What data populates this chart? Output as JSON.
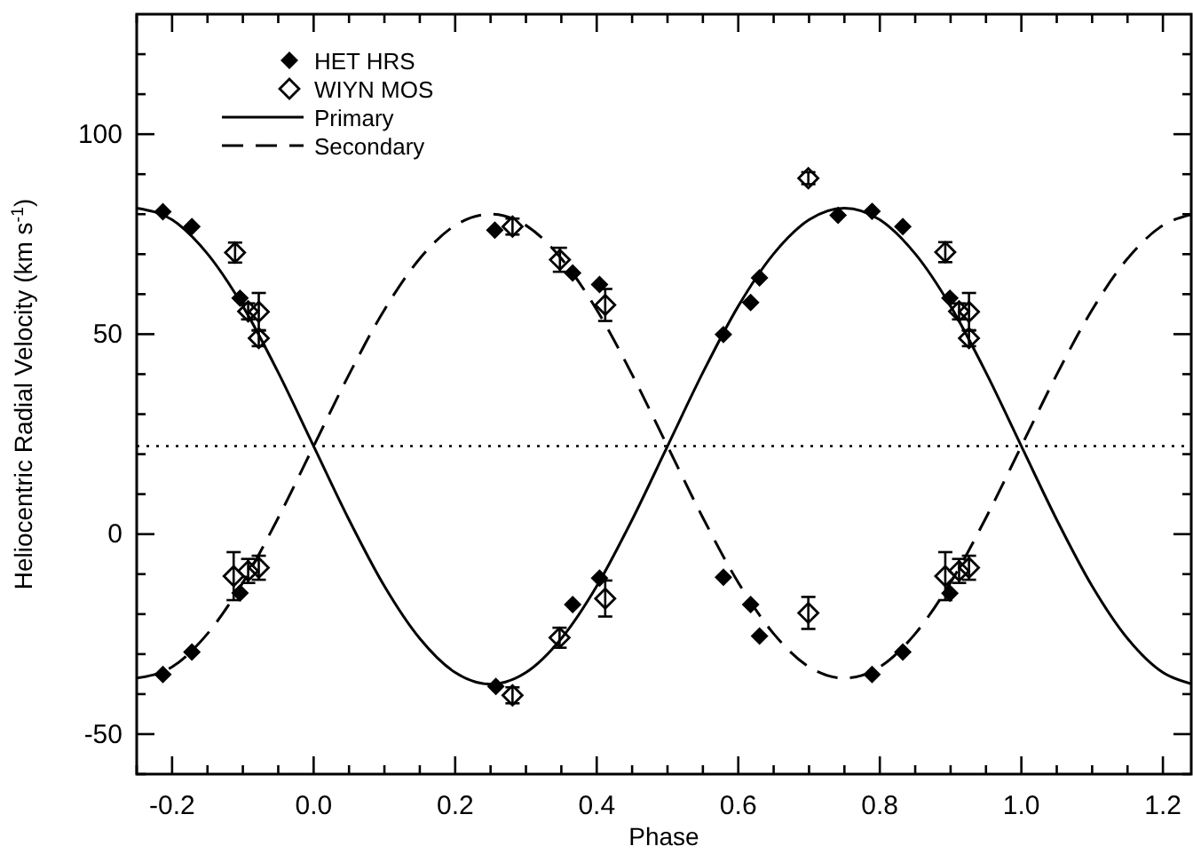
{
  "chart_data": {
    "type": "scatter",
    "xlabel": "Phase",
    "ylabel": "Heliocentric Radial Velocity (km s$^{-1}$)",
    "xlim": [
      -0.25,
      1.24
    ],
    "ylim": [
      -60,
      130
    ],
    "xticks": [
      {
        "value": -0.25,
        "label": null
      },
      -0.2,
      {
        "value": -0.15,
        "label": null
      },
      {
        "value": -0.1,
        "label": null
      },
      {
        "value": -0.05,
        "label": null
      },
      {
        "value": 0,
        "label": "0.0"
      },
      {
        "value": 0.05,
        "label": null
      },
      {
        "value": 0.1,
        "label": null
      },
      {
        "value": 0.15,
        "label": null
      },
      0.2,
      {
        "value": 0.25,
        "label": null
      },
      {
        "value": 0.3,
        "label": null
      },
      {
        "value": 0.35,
        "label": null
      },
      0.4,
      {
        "value": 0.45,
        "label": null
      },
      {
        "value": 0.5,
        "label": null
      },
      {
        "value": 0.55,
        "label": null
      },
      0.6,
      {
        "value": 0.65,
        "label": null
      },
      {
        "value": 0.7,
        "label": null
      },
      {
        "value": 0.75,
        "label": null
      },
      0.8,
      {
        "value": 0.85,
        "label": null
      },
      {
        "value": 0.9,
        "label": null
      },
      {
        "value": 0.95,
        "label": null
      },
      {
        "value": 1,
        "label": "1.0"
      },
      {
        "value": 1.05,
        "label": null
      },
      {
        "value": 1.1,
        "label": null
      },
      {
        "value": 1.15,
        "label": null
      },
      1.2
    ],
    "yticks": [
      {
        "value": -60,
        "label": null
      },
      -50,
      {
        "value": -40,
        "label": null
      },
      {
        "value": -30,
        "label": null
      },
      {
        "value": -20,
        "label": null
      },
      {
        "value": -10,
        "label": null
      },
      0,
      {
        "value": 10,
        "label": null
      },
      {
        "value": 20,
        "label": null
      },
      {
        "value": 30,
        "label": null
      },
      {
        "value": 40,
        "label": null
      },
      50,
      {
        "value": 60,
        "label": null
      },
      {
        "value": 70,
        "label": null
      },
      {
        "value": 80,
        "label": null
      },
      {
        "value": 90,
        "label": null
      },
      100,
      {
        "value": 110,
        "label": null
      },
      {
        "value": 120,
        "label": null
      }
    ],
    "grid": false,
    "legend": "top left",
    "ref_lines": [
      {
        "axis": "y",
        "value": 22,
        "line_style": "dotted",
        "color": "#000000"
      }
    ],
    "series": [
      {
        "name": "HET HRS",
        "marker": "diamond",
        "color": "#000000",
        "x": [
          -0.213,
          -0.172,
          -0.104,
          -0.213,
          -0.172,
          -0.104,
          0.256,
          0.366,
          0.404,
          0.2575,
          0.366,
          0.404,
          0.579,
          0.6175,
          0.63,
          0.741,
          0.789,
          0.8325,
          0.899,
          0.579,
          0.6175,
          0.63,
          0.789,
          0.8325,
          0.899
        ],
        "values": [
          80.6,
          76.9,
          59.0,
          -35.1,
          -29.5,
          -14.7,
          76.0,
          65.3,
          62.4,
          -38.1,
          -17.6,
          -11.0,
          49.9,
          57.9,
          64.1,
          79.7,
          80.7,
          76.9,
          59.0,
          -10.8,
          -17.6,
          -25.5,
          -35.1,
          -29.5,
          -14.8
        ]
      },
      {
        "name": "WIYN MOS",
        "marker": "diamond",
        "color": "#000000",
        "x": [
          -0.111,
          -0.0925,
          -0.0775,
          -0.0775,
          -0.113,
          -0.0925,
          -0.0775,
          0.281,
          0.348,
          0.412,
          0.281,
          0.3475,
          0.412,
          0.699,
          0.8925,
          0.912,
          0.926,
          0.926,
          0.699,
          0.8925,
          0.912,
          0.926
        ],
        "values": [
          70.4,
          55.7,
          55.6,
          49.0,
          -10.5,
          -9.2,
          -8.4,
          76.9,
          68.6,
          57.3,
          -40.3,
          -25.9,
          -16.1,
          89.0,
          70.5,
          55.7,
          55.6,
          49.0,
          -19.7,
          -10.5,
          -9.2,
          -8.4
        ],
        "errors": [
          2.5,
          2,
          4.7,
          2,
          6,
          3,
          3,
          2,
          3,
          4,
          2,
          2.5,
          4.5,
          1.5,
          2.5,
          2,
          4.7,
          2,
          4,
          6,
          3,
          3
        ]
      },
      {
        "name": "Primary",
        "type": "line",
        "marker": "none",
        "line_style": "solid",
        "color": "#000000",
        "x": [
          -0.25,
          -0.2,
          -0.15,
          -0.1,
          -0.05,
          0,
          0.05,
          0.1,
          0.15,
          0.2,
          0.25,
          0.3,
          0.35,
          0.4,
          0.45,
          0.5,
          0.55,
          0.6,
          0.65,
          0.7,
          0.75,
          0.8,
          0.85,
          0.9,
          0.95,
          1,
          1.05,
          1.1,
          1.15,
          1.2,
          1.24
        ],
        "values": [
          81.5,
          78.6,
          70.1,
          57.0,
          40.4,
          22,
          3.6,
          -13.0,
          -26.1,
          -34.6,
          -37.5,
          -34.6,
          -26.1,
          -13.0,
          3.6,
          22,
          40.4,
          57.0,
          70.1,
          78.6,
          81.5,
          78.6,
          70.1,
          57.0,
          40.4,
          22,
          3.6,
          -13.0,
          -26.1,
          -34.6,
          -37.4
        ]
      },
      {
        "name": "Secondary",
        "type": "line",
        "marker": "none",
        "line_style": "dashed",
        "color": "#000000",
        "x": [
          -0.25,
          -0.2,
          -0.15,
          -0.1,
          -0.05,
          0,
          0.05,
          0.1,
          0.15,
          0.2,
          0.25,
          0.3,
          0.35,
          0.4,
          0.45,
          0.5,
          0.55,
          0.6,
          0.65,
          0.7,
          0.75,
          0.8,
          0.85,
          0.9,
          0.95,
          1,
          1.05,
          1.1,
          1.15,
          1.2,
          1.24
        ],
        "values": [
          -36,
          -33.2,
          -24.9,
          -12.1,
          4.1,
          22,
          39.9,
          56.1,
          68.9,
          77.2,
          80,
          77.2,
          68.9,
          56.1,
          39.9,
          22,
          4.1,
          -12.1,
          -24.9,
          -33.2,
          -36,
          -33.2,
          -24.9,
          -12.1,
          4.1,
          22,
          39.9,
          56.1,
          68.9,
          77.2,
          79.9
        ]
      }
    ]
  }
}
